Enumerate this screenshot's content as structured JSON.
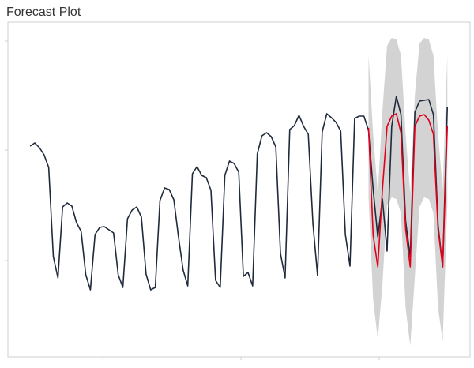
{
  "chart_data": {
    "type": "line",
    "title": "Forecast Plot",
    "x": [
      0,
      1,
      2,
      3,
      4,
      5,
      6,
      7,
      8,
      9,
      10,
      11,
      12,
      13,
      14,
      15,
      16,
      17,
      18,
      19,
      20,
      21,
      22,
      23,
      24,
      25,
      26,
      27,
      28,
      29,
      30,
      31,
      32,
      33,
      34,
      35,
      36,
      37,
      38,
      39,
      40,
      41,
      42,
      43,
      44,
      45,
      46,
      47,
      48,
      49,
      50,
      51,
      52,
      53,
      54,
      55,
      56,
      57,
      58,
      59,
      60,
      61,
      62,
      63,
      64,
      65,
      66,
      67,
      68,
      69,
      70,
      71,
      72,
      73,
      74,
      75,
      76,
      77,
      78,
      79,
      80,
      81,
      82,
      83,
      84,
      85,
      86,
      87,
      88,
      89,
      90
    ],
    "xlim": [
      -4.8,
      94.9
    ],
    "xticks": [
      15.7,
      45.5,
      75.3
    ],
    "ylim": [
      0,
      424
    ],
    "yticks": [
      122,
      262,
      400
    ],
    "series": [
      {
        "color": "#1f2a3c",
        "values": [
          267,
          271,
          265,
          256,
          240,
          127,
          100,
          190,
          195,
          191,
          170,
          159,
          104,
          85,
          155,
          164,
          165,
          161,
          157,
          104,
          88,
          175,
          186,
          190,
          177,
          105,
          85,
          88,
          198,
          214,
          212,
          199,
          152,
          110,
          90,
          232,
          241,
          230,
          227,
          211,
          97,
          88,
          230,
          248,
          245,
          234,
          102,
          107,
          90,
          257,
          280,
          284,
          279,
          266,
          131,
          100,
          288,
          293,
          306,
          292,
          282,
          169,
          103,
          285,
          308,
          303,
          297,
          286,
          155,
          115,
          302,
          305,
          305,
          287,
          212,
          152,
          200,
          134,
          292,
          330,
          307,
          172,
          127,
          310,
          324,
          325,
          326,
          307,
          167,
          114,
          317
        ]
      }
    ],
    "forecast": {
      "color": "#e0001b",
      "band_color": "#d3d3d3",
      "x": [
        73,
        74,
        75,
        76,
        77,
        78,
        79,
        80,
        81,
        82,
        83,
        84,
        85,
        86,
        87,
        88,
        89,
        90
      ],
      "values": [
        290,
        154,
        114,
        212,
        292,
        305,
        308,
        284,
        162,
        114,
        292,
        305,
        307,
        300,
        282,
        162,
        114,
        292
      ],
      "upper": [
        382,
        282,
        207,
        312,
        394,
        404,
        402,
        382,
        282,
        207,
        332,
        397,
        404,
        402,
        382,
        282,
        212,
        382
      ],
      "lower": [
        202,
        72,
        22,
        92,
        192,
        202,
        200,
        182,
        62,
        14,
        102,
        190,
        202,
        200,
        182,
        62,
        20,
        192
      ]
    }
  }
}
